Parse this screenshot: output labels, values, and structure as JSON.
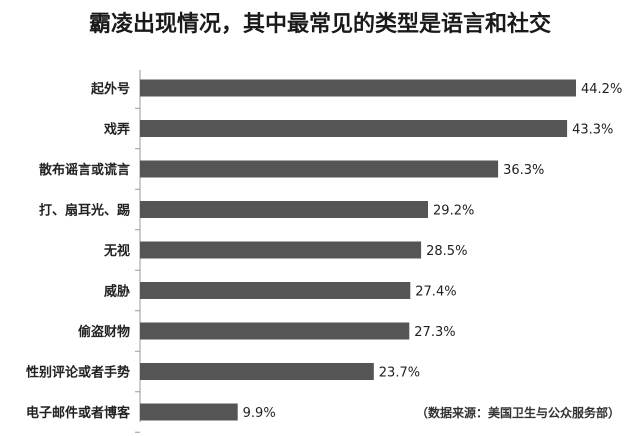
{
  "chart_data": {
    "type": "bar",
    "orientation": "horizontal",
    "title": "霸凌出现情况，其中最常见的类型是语言和社交",
    "source": "（数据来源：美国卫生与公众服务部）",
    "categories": [
      "起外号",
      "戏弄",
      "散布谣言或谎言",
      "打、扇耳光、踢",
      "无视",
      "威胁",
      "偷盗财物",
      "性别评论或者手势",
      "电子邮件或者博客"
    ],
    "values": [
      44.2,
      43.3,
      36.3,
      29.2,
      28.5,
      27.4,
      27.3,
      23.7,
      9.9
    ],
    "value_labels": [
      "44.2%",
      "43.3%",
      "36.3%",
      "29.2%",
      "28.5%",
      "27.4%",
      "27.3%",
      "23.7%",
      "9.9%"
    ],
    "unit": "%",
    "xlim": [
      0,
      44.2
    ],
    "bar_color": "#555555",
    "grid": false,
    "legend": "none"
  }
}
